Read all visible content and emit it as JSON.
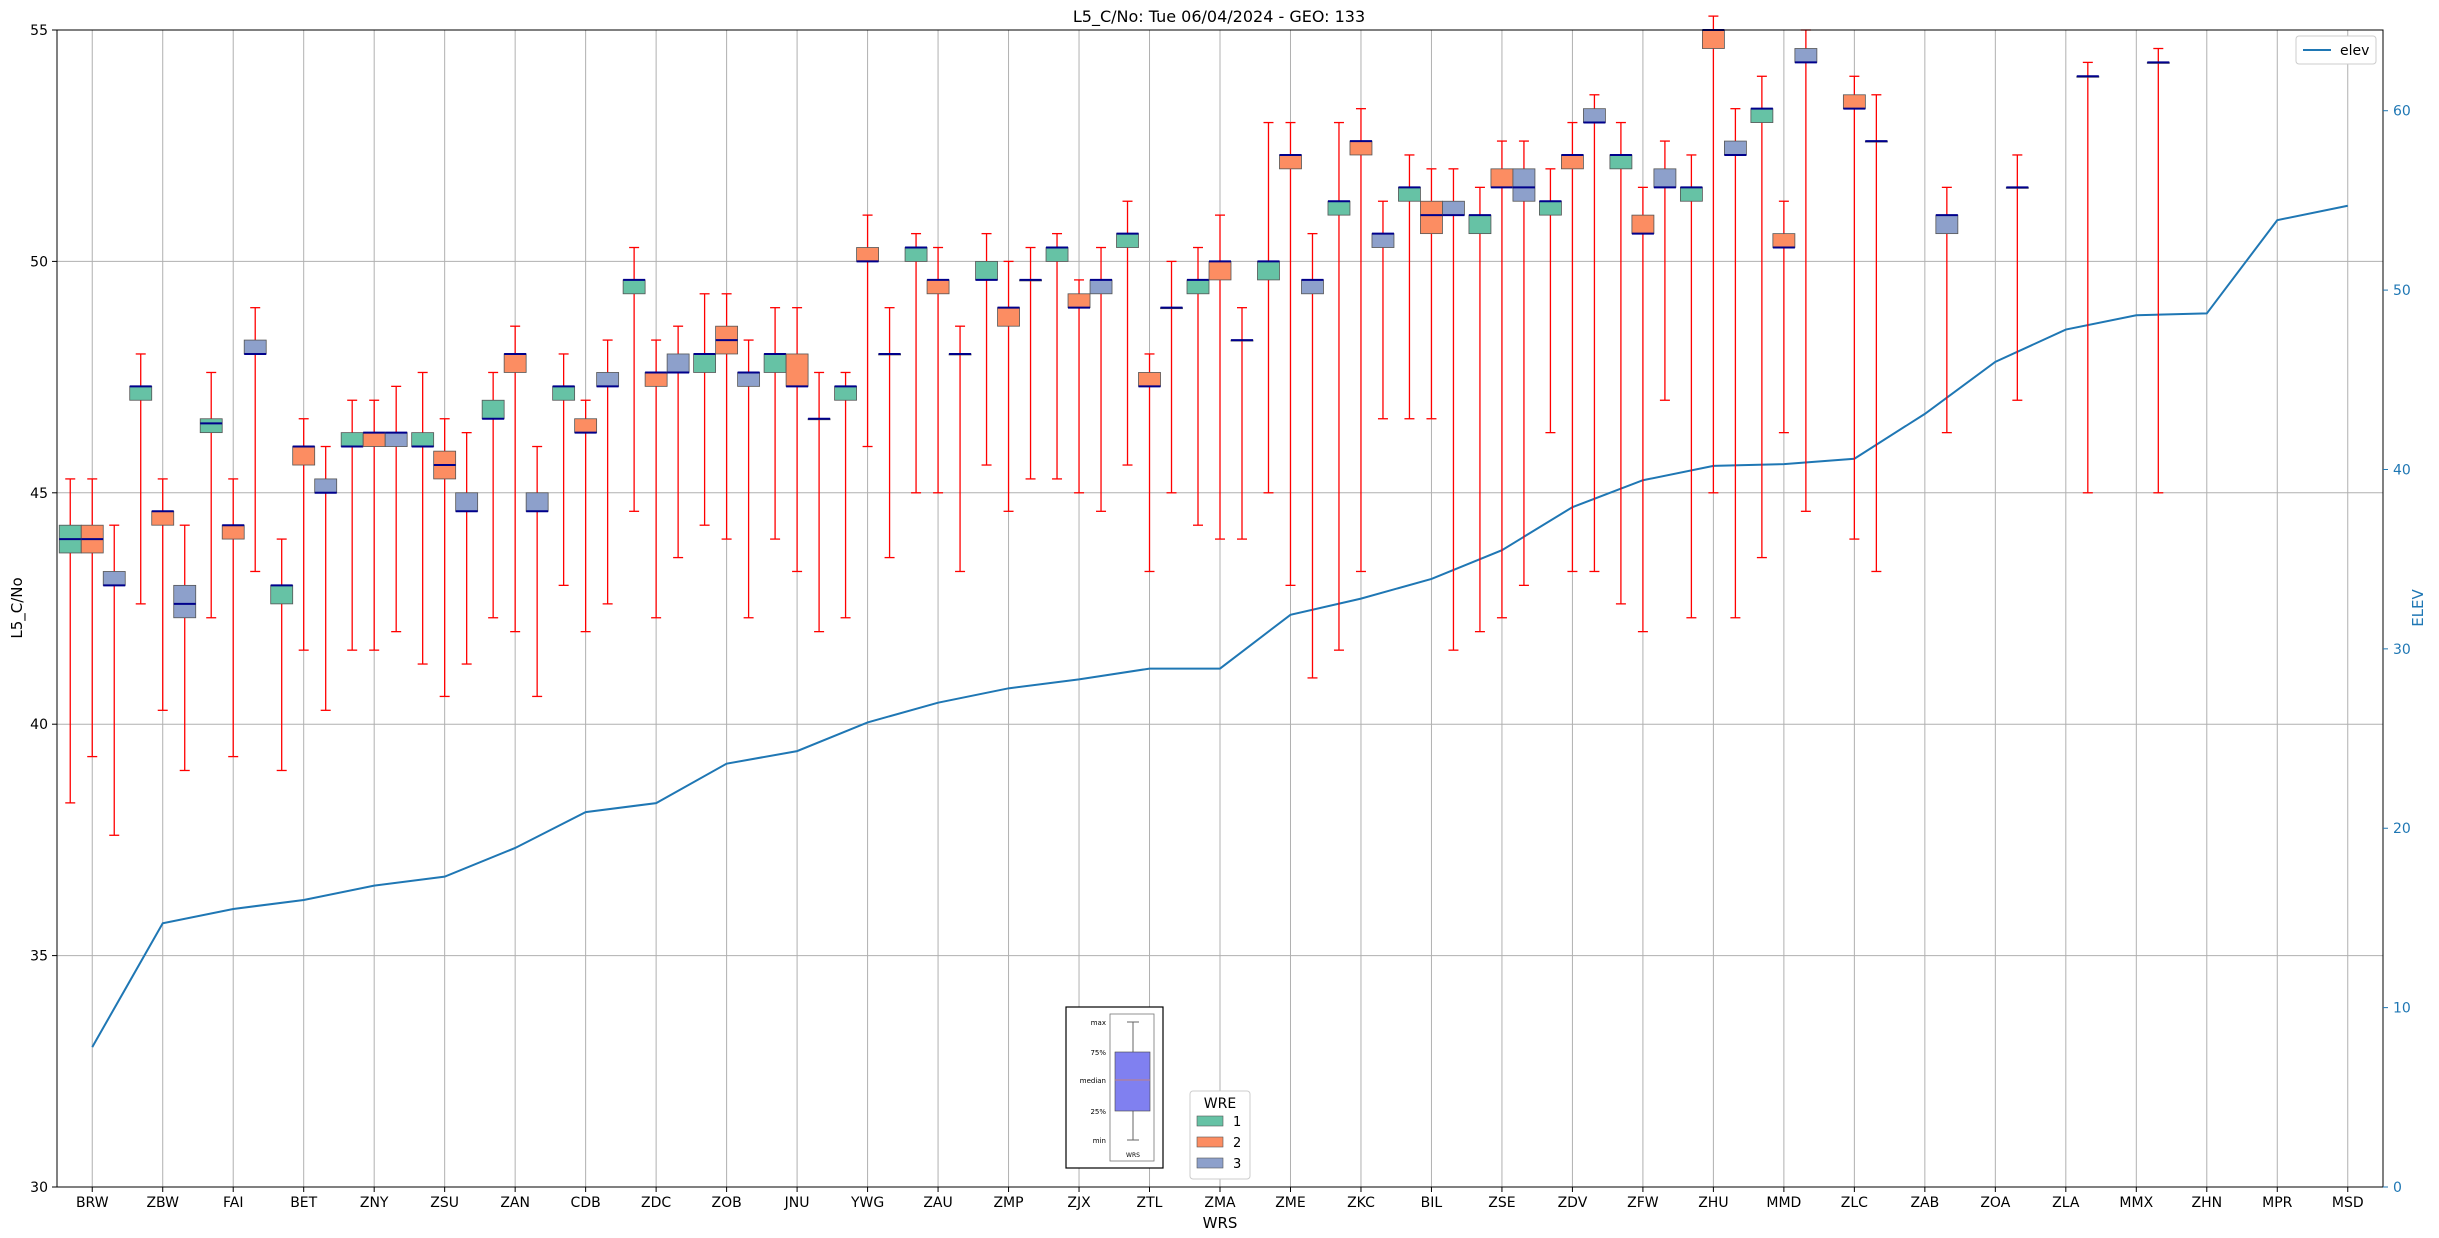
{
  "chart_data": {
    "type": "box",
    "title": "L5_C/No: Tue 06/04/2024 - GEO: 133",
    "xlabel": "WRS",
    "ylabel": "L5_C/No",
    "y2label": "ELEV",
    "ylim": [
      30,
      55
    ],
    "y2lim": [
      0,
      64.5
    ],
    "yticks": [
      30,
      35,
      40,
      45,
      50,
      55
    ],
    "y2ticks": [
      0,
      10,
      20,
      30,
      40,
      50,
      60
    ],
    "grid": true,
    "categories": [
      "BRW",
      "ZBW",
      "FAI",
      "BET",
      "ZNY",
      "ZSU",
      "ZAN",
      "CDB",
      "ZDC",
      "ZOB",
      "JNU",
      "YWG",
      "ZAU",
      "ZMP",
      "ZJX",
      "ZTL",
      "ZMA",
      "ZME",
      "ZKC",
      "BIL",
      "ZSE",
      "ZDV",
      "ZFW",
      "ZHU",
      "MMD",
      "ZLC",
      "ZAB",
      "ZOA",
      "ZLA",
      "MMX",
      "ZHN",
      "MPR",
      "MSD"
    ],
    "legend_title": "WRE",
    "legend_position": "lower-center",
    "wre_colors": {
      "1": "#66c2a5",
      "2": "#fc8d62",
      "3": "#8da0cb"
    },
    "whisker_color": "#ff0000",
    "median_color": "#00008b",
    "elev_color": "#1f77b4",
    "elev_legend_position": "top-right",
    "series": [
      {
        "name": "1",
        "boxes": [
          [
            38.3,
            43.7,
            44.0,
            44.3,
            45.3
          ],
          [
            42.6,
            47.0,
            47.3,
            47.3,
            48.0
          ],
          [
            42.3,
            46.3,
            46.5,
            46.6,
            47.6
          ],
          [
            39.0,
            42.6,
            43.0,
            43.0,
            44.0
          ],
          [
            41.6,
            46.0,
            46.0,
            46.3,
            47.0
          ],
          [
            41.3,
            46.0,
            46.0,
            46.3,
            47.6
          ],
          [
            42.3,
            46.6,
            46.6,
            47.0,
            47.6
          ],
          [
            43.0,
            47.0,
            47.3,
            47.3,
            48.0
          ],
          [
            44.6,
            49.3,
            49.6,
            49.6,
            50.3
          ],
          [
            44.3,
            47.6,
            48.0,
            48.0,
            49.3
          ],
          [
            44.0,
            47.6,
            48.0,
            48.0,
            49.0
          ],
          [
            42.3,
            47.0,
            47.3,
            47.3,
            47.6
          ],
          [
            45.0,
            50.0,
            50.3,
            50.3,
            50.6
          ],
          [
            45.6,
            49.6,
            49.6,
            50.0,
            50.6
          ],
          [
            45.3,
            50.0,
            50.3,
            50.3,
            50.6
          ],
          [
            45.6,
            50.3,
            50.6,
            50.6,
            51.3
          ],
          [
            44.3,
            49.3,
            49.6,
            49.6,
            50.3
          ],
          [
            45.0,
            49.6,
            50.0,
            50.0,
            53.0
          ],
          [
            41.6,
            51.0,
            51.3,
            51.3,
            53.0
          ],
          [
            46.6,
            51.3,
            51.6,
            51.6,
            52.3
          ],
          [
            42.0,
            50.6,
            51.0,
            51.0,
            51.6
          ],
          [
            46.3,
            51.0,
            51.3,
            51.3,
            52.0
          ],
          [
            42.6,
            52.0,
            52.3,
            52.3,
            53.0
          ],
          [
            42.3,
            51.3,
            51.6,
            51.6,
            52.3
          ],
          [
            43.6,
            53.0,
            53.3,
            53.3,
            54.0
          ]
        ]
      },
      {
        "name": "2",
        "boxes": [
          [
            39.3,
            43.7,
            44.0,
            44.3,
            45.3
          ],
          [
            40.3,
            44.3,
            44.6,
            44.6,
            45.3
          ],
          [
            39.3,
            44.0,
            44.3,
            44.3,
            45.3
          ],
          [
            41.6,
            45.6,
            46.0,
            46.0,
            46.6
          ],
          [
            41.6,
            46.0,
            46.3,
            46.3,
            47.0
          ],
          [
            40.6,
            45.3,
            45.6,
            45.9,
            46.6
          ],
          [
            42.0,
            47.6,
            48.0,
            48.0,
            48.6
          ],
          [
            42.0,
            46.3,
            46.3,
            46.6,
            47.0
          ],
          [
            42.3,
            47.3,
            47.6,
            47.6,
            48.3
          ],
          [
            44.0,
            48.0,
            48.3,
            48.6,
            49.3
          ],
          [
            43.3,
            47.3,
            47.3,
            48.0,
            49.0
          ],
          [
            46.0,
            50.0,
            50.0,
            50.3,
            51.0
          ],
          [
            45.0,
            49.3,
            49.6,
            49.6,
            50.3
          ],
          [
            44.6,
            48.6,
            49.0,
            49.0,
            50.0
          ],
          [
            45.0,
            49.0,
            49.0,
            49.3,
            49.6
          ],
          [
            43.3,
            47.3,
            47.3,
            47.6,
            48.0
          ],
          [
            44.0,
            49.6,
            50.0,
            50.0,
            51.0
          ],
          [
            43.0,
            52.0,
            52.3,
            52.3,
            53.0
          ],
          [
            43.3,
            52.3,
            52.6,
            52.6,
            53.3
          ],
          [
            46.6,
            50.6,
            51.0,
            51.3,
            52.0
          ],
          [
            42.3,
            51.6,
            51.6,
            52.0,
            52.6
          ],
          [
            43.3,
            52.0,
            52.3,
            52.3,
            53.0
          ],
          [
            42.0,
            50.6,
            50.6,
            51.0,
            51.6
          ],
          [
            45.0,
            54.6,
            55.0,
            55.0,
            55.3
          ],
          [
            46.3,
            50.3,
            50.3,
            50.6,
            51.3
          ],
          [
            44.0,
            53.3,
            53.3,
            53.6,
            54.0
          ]
        ]
      },
      {
        "name": "3",
        "boxes": [
          [
            37.6,
            43.0,
            43.0,
            43.3,
            44.3
          ],
          [
            39.0,
            42.3,
            42.6,
            43.0,
            44.3
          ],
          [
            43.3,
            48.0,
            48.0,
            48.3,
            49.0
          ],
          [
            40.3,
            45.0,
            45.0,
            45.3,
            46.0
          ],
          [
            42.0,
            46.0,
            46.3,
            46.3,
            47.3
          ],
          [
            41.3,
            44.6,
            44.6,
            45.0,
            46.3
          ],
          [
            40.6,
            44.6,
            44.6,
            45.0,
            46.0
          ],
          [
            42.6,
            47.3,
            47.3,
            47.6,
            48.3
          ],
          [
            43.6,
            47.6,
            47.6,
            48.0,
            48.6
          ],
          [
            42.3,
            47.3,
            47.6,
            47.6,
            48.3
          ],
          [
            42.0,
            46.6,
            46.6,
            46.6,
            47.6
          ],
          [
            43.6,
            48.0,
            48.0,
            48.0,
            49.0
          ],
          [
            43.3,
            48.0,
            48.0,
            48.0,
            48.6
          ],
          [
            45.3,
            49.6,
            49.6,
            49.6,
            50.3
          ],
          [
            44.6,
            49.3,
            49.6,
            49.6,
            50.3
          ],
          [
            45.0,
            49.0,
            49.0,
            49.0,
            50.0
          ],
          [
            44.0,
            48.3,
            48.3,
            48.3,
            49.0
          ],
          [
            41.0,
            49.3,
            49.6,
            49.6,
            50.6
          ],
          [
            46.6,
            50.3,
            50.6,
            50.6,
            51.3
          ],
          [
            41.6,
            51.0,
            51.0,
            51.3,
            52.0
          ],
          [
            43.0,
            51.3,
            51.6,
            52.0,
            52.6
          ],
          [
            43.3,
            53.0,
            53.0,
            53.3,
            53.6
          ],
          [
            47.0,
            51.6,
            51.6,
            52.0,
            52.6
          ],
          [
            42.3,
            52.3,
            52.3,
            52.6,
            53.3
          ],
          [
            44.6,
            54.3,
            54.3,
            54.6,
            55.0
          ],
          [
            43.3,
            52.6,
            52.6,
            52.6,
            53.6
          ],
          [
            46.3,
            50.6,
            51.0,
            51.0,
            51.6
          ],
          [
            47.0,
            51.6,
            51.6,
            51.6,
            52.3
          ],
          [
            45.0,
            54.0,
            54.0,
            54.0,
            54.3
          ],
          [
            45.0,
            54.3,
            54.3,
            54.3,
            54.6
          ]
        ]
      },
      {
        "name": "elev",
        "values": [
          7.8,
          14.7,
          15.5,
          16.0,
          16.8,
          17.3,
          18.9,
          20.9,
          21.4,
          23.6,
          24.3,
          25.9,
          27.0,
          27.8,
          28.3,
          28.9,
          28.9,
          31.9,
          32.8,
          33.9,
          35.5,
          37.9,
          39.4,
          40.2,
          40.3,
          40.6,
          43.1,
          46.0,
          47.8,
          48.6,
          48.7,
          53.9,
          54.7
        ]
      }
    ],
    "placement_note": "",
    "inset_legend": {
      "labels": [
        "max",
        "75%",
        "median",
        "25%",
        "min"
      ],
      "caption": "WRS"
    }
  }
}
